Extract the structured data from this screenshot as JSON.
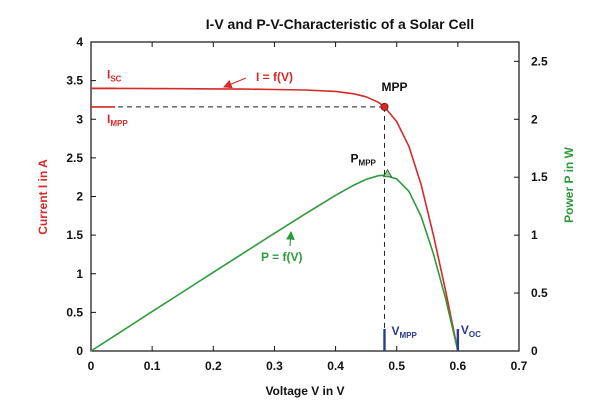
{
  "chart_data": {
    "type": "line",
    "title": "I-V and P-V-Characteristic of a Solar Cell",
    "xlabel": "Voltage V in V",
    "ylabel_left": "Current I in A",
    "ylabel_right": "Power P in W",
    "xlim": [
      0,
      0.7
    ],
    "ylim_left": [
      0,
      4
    ],
    "ylim_right": [
      0,
      2.667
    ],
    "xticks": [
      0,
      0.1,
      0.2,
      0.3,
      0.4,
      0.5,
      0.6,
      0.7
    ],
    "xtick_labels": [
      "0",
      "0.1",
      "0.2",
      "0.3",
      "0.4",
      "0.5",
      "0.6",
      "0.7"
    ],
    "yticks_left": [
      0,
      0.5,
      1,
      1.5,
      2,
      2.5,
      3,
      3.5,
      4
    ],
    "ytick_labels_left": [
      "0",
      "0.5",
      "1",
      "1.5",
      "2",
      "2.5",
      "3",
      "3.5",
      "4"
    ],
    "yticks_right": [
      0,
      0.5,
      1,
      1.5,
      2,
      2.5
    ],
    "ytick_labels_right": [
      "0",
      "0.5",
      "1",
      "1.5",
      "2",
      "2.5"
    ],
    "grid": false,
    "colors": {
      "current": "#d42a2a",
      "power": "#2f9a3c",
      "voltage_marker": "#2b3a8c",
      "axis": "#111111",
      "guide": "#222222"
    },
    "series": [
      {
        "name": "I = f(V)",
        "axis": "left",
        "x": [
          0,
          0.05,
          0.1,
          0.15,
          0.2,
          0.25,
          0.3,
          0.35,
          0.4,
          0.43,
          0.45,
          0.47,
          0.48,
          0.5,
          0.52,
          0.54,
          0.56,
          0.58,
          0.6
        ],
        "y": [
          3.4,
          3.399,
          3.397,
          3.395,
          3.393,
          3.39,
          3.385,
          3.378,
          3.36,
          3.33,
          3.29,
          3.22,
          3.16,
          2.97,
          2.65,
          2.15,
          1.5,
          0.78,
          0.0
        ]
      },
      {
        "name": "P = f(V)",
        "axis": "right",
        "x": [
          0,
          0.05,
          0.1,
          0.15,
          0.2,
          0.25,
          0.3,
          0.35,
          0.4,
          0.43,
          0.45,
          0.47,
          0.48,
          0.5,
          0.52,
          0.54,
          0.56,
          0.58,
          0.6
        ],
        "y": [
          0.0,
          0.17,
          0.34,
          0.509,
          0.679,
          0.848,
          1.016,
          1.182,
          1.344,
          1.432,
          1.481,
          1.513,
          1.517,
          1.485,
          1.378,
          1.161,
          0.84,
          0.452,
          0.0
        ]
      }
    ],
    "annotations": {
      "isc": {
        "text": "I",
        "sub": "SC",
        "value": 3.4
      },
      "impp": {
        "text": "I",
        "sub": "MPP",
        "value": 3.16
      },
      "mpp": {
        "text": "MPP",
        "x": 0.48,
        "y": 3.16
      },
      "pmpp": {
        "text": "P",
        "sub": "MPP",
        "x": 0.485,
        "y": 1.53
      },
      "vmpp": {
        "text": "V",
        "sub": "MPP",
        "x": 0.48
      },
      "voc": {
        "text": "V",
        "sub": "OC",
        "x": 0.6
      },
      "i_label": "I = f(V)",
      "p_label": "P = f(V)"
    }
  }
}
